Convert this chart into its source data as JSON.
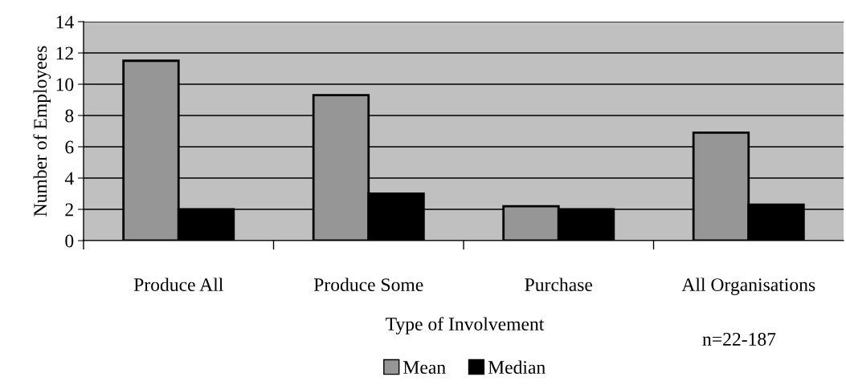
{
  "chart_data": {
    "type": "bar",
    "xlabel": "Type of Involvement",
    "ylabel": "Number of Employees",
    "categories": [
      "Produce All",
      "Produce Some",
      "Purchase",
      "All Organisations"
    ],
    "series": [
      {
        "name": "Mean",
        "color": "#969696",
        "values": [
          11.5,
          9.3,
          2.2,
          6.9
        ]
      },
      {
        "name": "Median",
        "color": "#000000",
        "values": [
          2.0,
          3.0,
          2.0,
          2.3
        ]
      }
    ],
    "ylim": [
      0,
      14
    ],
    "yticks": [
      0,
      2,
      4,
      6,
      8,
      10,
      12,
      14
    ],
    "grid": "y",
    "legend": "bottom",
    "annotations": [
      "n=22-187"
    ]
  }
}
